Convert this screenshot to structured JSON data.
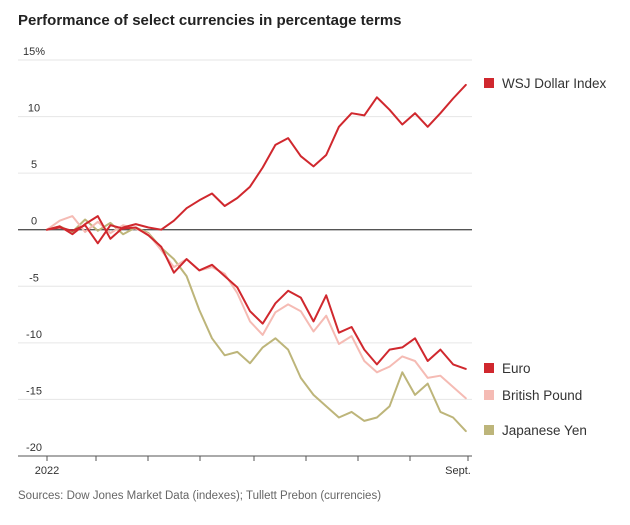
{
  "title": "Performance of select currencies in percentage terms",
  "source": "Sources: Dow Jones Market Data (indexes); Tullett Prebon (currencies)",
  "chart_data": {
    "type": "line",
    "title": "Performance of select currencies in percentage terms",
    "xlabel": "",
    "ylabel": "",
    "x_tick_labels": [
      "2022",
      "Sept."
    ],
    "y_tick_labels": [
      "15%",
      "10",
      "5",
      "0",
      "-5",
      "-10",
      "-15",
      "-20"
    ],
    "y_ticks": [
      15,
      10,
      5,
      0,
      -5,
      -10,
      -15,
      -20
    ],
    "ylim": [
      -20,
      15
    ],
    "xlim": [
      0,
      100
    ],
    "grid": true,
    "legend_position": "right, beside line ends",
    "series": [
      {
        "name": "WSJ Dollar Index",
        "color": "#d0282e",
        "x": [
          0,
          3,
          6,
          9,
          12,
          15,
          18,
          21,
          24,
          27,
          30,
          33,
          36,
          39,
          42,
          45,
          48,
          51,
          54,
          57,
          60,
          63,
          66,
          69,
          72,
          75,
          78,
          81,
          84,
          87,
          90,
          93,
          96,
          99
        ],
        "values": [
          0,
          0.3,
          -0.4,
          0.5,
          1.2,
          -0.8,
          0.2,
          0.5,
          0.2,
          0,
          0.8,
          1.9,
          2.6,
          3.2,
          2.1,
          2.8,
          3.8,
          5.5,
          7.5,
          8.1,
          6.5,
          5.6,
          6.6,
          9.1,
          10.3,
          10.1,
          11.7,
          10.6,
          9.3,
          10.3,
          9.1,
          10.3,
          11.6,
          12.8
        ]
      },
      {
        "name": "Euro",
        "color": "#d0282e",
        "x": [
          0,
          3,
          6,
          9,
          12,
          15,
          18,
          21,
          24,
          27,
          30,
          33,
          36,
          39,
          42,
          45,
          48,
          51,
          54,
          57,
          60,
          63,
          66,
          69,
          72,
          75,
          78,
          81,
          84,
          87,
          90,
          93,
          96,
          99
        ],
        "values": [
          0,
          0.2,
          -0.1,
          0.4,
          -1.2,
          0.4,
          0.1,
          0.2,
          -0.5,
          -1.5,
          -3.8,
          -2.6,
          -3.6,
          -3.1,
          -4.1,
          -5.1,
          -7.2,
          -8.3,
          -6.5,
          -5.4,
          -6.0,
          -8.1,
          -5.8,
          -9.1,
          -8.6,
          -10.6,
          -11.9,
          -10.6,
          -10.4,
          -9.6,
          -11.6,
          -10.6,
          -11.9,
          -12.3
        ]
      },
      {
        "name": "British Pound",
        "color": "#f5bbb4",
        "x": [
          0,
          3,
          6,
          9,
          12,
          15,
          18,
          21,
          24,
          27,
          30,
          33,
          36,
          39,
          42,
          45,
          48,
          51,
          54,
          57,
          60,
          63,
          66,
          69,
          72,
          75,
          78,
          81,
          84,
          87,
          90,
          93,
          96,
          99
        ],
        "values": [
          0,
          0.8,
          1.2,
          -0.2,
          0.7,
          -0.3,
          0.4,
          0.1,
          -0.4,
          -1.8,
          -3.3,
          -2.6,
          -3.6,
          -3.3,
          -3.9,
          -5.6,
          -8.1,
          -9.3,
          -7.3,
          -6.6,
          -7.2,
          -9.0,
          -7.6,
          -10.1,
          -9.4,
          -11.6,
          -12.6,
          -12.1,
          -11.2,
          -11.6,
          -13.1,
          -12.9,
          -13.9,
          -14.9
        ]
      },
      {
        "name": "Japanese Yen",
        "color": "#bdb57a",
        "x": [
          0,
          3,
          6,
          9,
          12,
          15,
          18,
          21,
          24,
          27,
          30,
          33,
          36,
          39,
          42,
          45,
          48,
          51,
          54,
          57,
          60,
          63,
          66,
          69,
          72,
          75,
          78,
          81,
          84,
          87,
          90,
          93,
          96,
          99
        ],
        "values": [
          0,
          0.3,
          -0.2,
          0.9,
          -0.1,
          0.6,
          -0.4,
          0.2,
          -0.3,
          -1.6,
          -2.6,
          -4.1,
          -7.1,
          -9.6,
          -11.1,
          -10.8,
          -11.8,
          -10.4,
          -9.6,
          -10.6,
          -13.1,
          -14.6,
          -15.6,
          -16.6,
          -16.1,
          -16.9,
          -16.6,
          -15.6,
          -12.6,
          -14.6,
          -13.6,
          -16.1,
          -16.6,
          -17.8
        ]
      }
    ]
  }
}
